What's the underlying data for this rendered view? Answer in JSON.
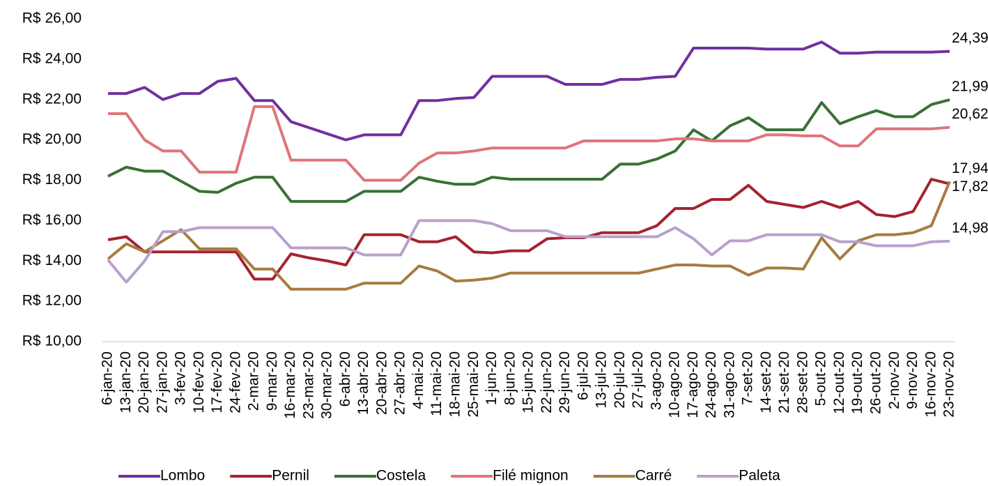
{
  "chart_data": {
    "type": "line",
    "categories": [
      "6-jan-20",
      "13-jan-20",
      "20-jan-20",
      "27-jan-20",
      "3-fev-20",
      "10-fev-20",
      "17-fev-20",
      "24-fev-20",
      "2-mar-20",
      "9-mar-20",
      "16-mar-20",
      "23-mar-20",
      "30-mar-20",
      "6-abr-20",
      "13-abr-20",
      "20-abr-20",
      "27-abr-20",
      "4-mai-20",
      "11-mai-20",
      "18-mai-20",
      "25-mai-20",
      "1-jun-20",
      "8-jun-20",
      "15-jun-20",
      "22-jun-20",
      "29-jun-20",
      "6-jul-20",
      "13-jul-20",
      "20-jul-20",
      "27-jul-20",
      "3-ago-20",
      "10-ago-20",
      "17-ago-20",
      "24-ago-20",
      "31-ago-20",
      "7-set-20",
      "14-set-20",
      "21-set-20",
      "28-set-20",
      "5-out-20",
      "12-out-20",
      "19-out-20",
      "26-out-20",
      "2-nov-20",
      "9-nov-20",
      "16-nov-20",
      "23-nov-20"
    ],
    "ylim": [
      10,
      26
    ],
    "yticks": [
      {
        "value": 10,
        "label": "R$ 10,00"
      },
      {
        "value": 12,
        "label": "R$ 12,00"
      },
      {
        "value": 14,
        "label": "R$ 14,00"
      },
      {
        "value": 16,
        "label": "R$ 16,00"
      },
      {
        "value": 18,
        "label": "R$ 18,00"
      },
      {
        "value": 20,
        "label": "R$ 20,00"
      },
      {
        "value": 22,
        "label": "R$ 22,00"
      },
      {
        "value": 24,
        "label": "R$ 24,00"
      },
      {
        "value": 26,
        "label": "R$ 26,00"
      }
    ],
    "grid": false,
    "legend": "bottom",
    "series": [
      {
        "name": "Lombo",
        "color": "#7030a0",
        "values": [
          22.3,
          22.3,
          22.6,
          22.0,
          22.3,
          22.3,
          22.9,
          23.05,
          21.95,
          21.95,
          20.9,
          20.6,
          20.3,
          20.0,
          20.25,
          20.25,
          20.25,
          21.95,
          21.95,
          22.05,
          22.1,
          23.15,
          23.15,
          23.15,
          23.15,
          22.75,
          22.75,
          22.75,
          23.0,
          23.0,
          23.1,
          23.15,
          24.55,
          24.55,
          24.55,
          24.55,
          24.5,
          24.5,
          24.5,
          24.85,
          24.3,
          24.3,
          24.35,
          24.35,
          24.35,
          24.35,
          24.39
        ],
        "value_labels": [
          null,
          null,
          null,
          null,
          null,
          null,
          null,
          null,
          null,
          null,
          null,
          null,
          null,
          null,
          null,
          null,
          null,
          null,
          null,
          null,
          null,
          null,
          null,
          null,
          null,
          null,
          null,
          null,
          null,
          null,
          null,
          null,
          null,
          null,
          null,
          null,
          null,
          null,
          null,
          null,
          null,
          null,
          null,
          null,
          null,
          null,
          "24,39"
        ]
      },
      {
        "name": "Pernil",
        "color": "#a5232f",
        "values": [
          15.05,
          15.2,
          14.45,
          14.45,
          14.45,
          14.45,
          14.45,
          14.45,
          13.1,
          13.1,
          14.35,
          14.15,
          14.0,
          13.8,
          15.3,
          15.3,
          15.3,
          14.95,
          14.95,
          15.2,
          14.45,
          14.4,
          14.5,
          14.5,
          15.1,
          15.15,
          15.15,
          15.4,
          15.4,
          15.4,
          15.75,
          16.6,
          16.6,
          17.05,
          17.05,
          17.75,
          16.95,
          16.8,
          16.65,
          16.95,
          16.65,
          16.95,
          16.3,
          16.2,
          16.45,
          18.05,
          17.82
        ],
        "value_labels": [
          null,
          null,
          null,
          null,
          null,
          null,
          null,
          null,
          null,
          null,
          null,
          null,
          null,
          null,
          null,
          null,
          null,
          null,
          null,
          null,
          null,
          null,
          null,
          null,
          null,
          null,
          null,
          null,
          null,
          null,
          null,
          null,
          null,
          null,
          null,
          null,
          null,
          null,
          null,
          null,
          null,
          null,
          null,
          null,
          null,
          null,
          "17,82"
        ]
      },
      {
        "name": "Costela",
        "color": "#3a7035",
        "values": [
          18.2,
          18.65,
          18.45,
          18.45,
          17.95,
          17.45,
          17.4,
          17.85,
          18.15,
          18.15,
          16.95,
          16.95,
          16.95,
          16.95,
          17.45,
          17.45,
          17.45,
          18.15,
          17.95,
          17.8,
          17.8,
          18.15,
          18.05,
          18.05,
          18.05,
          18.05,
          18.05,
          18.05,
          18.8,
          18.8,
          19.05,
          19.45,
          20.5,
          19.95,
          20.7,
          21.1,
          20.5,
          20.5,
          20.5,
          21.85,
          20.8,
          21.15,
          21.45,
          21.15,
          21.15,
          21.75,
          21.99
        ],
        "value_labels": [
          null,
          null,
          null,
          null,
          null,
          null,
          null,
          null,
          null,
          null,
          null,
          null,
          null,
          null,
          null,
          null,
          null,
          null,
          null,
          null,
          null,
          null,
          null,
          null,
          null,
          null,
          null,
          null,
          null,
          null,
          null,
          null,
          null,
          null,
          null,
          null,
          null,
          null,
          null,
          null,
          null,
          null,
          null,
          null,
          null,
          null,
          "21,99"
        ]
      },
      {
        "name": "Filé mignon",
        "color": "#e07479",
        "values": [
          21.3,
          21.3,
          20.0,
          19.45,
          19.45,
          18.4,
          18.4,
          18.4,
          21.65,
          21.65,
          19.0,
          19.0,
          19.0,
          19.0,
          18.0,
          18.0,
          18.0,
          18.85,
          19.35,
          19.35,
          19.45,
          19.6,
          19.6,
          19.6,
          19.6,
          19.6,
          19.95,
          19.95,
          19.95,
          19.95,
          19.95,
          20.05,
          20.05,
          19.95,
          19.95,
          19.95,
          20.25,
          20.25,
          20.2,
          20.2,
          19.7,
          19.7,
          20.55,
          20.55,
          20.55,
          20.55,
          20.62
        ],
        "value_labels": [
          null,
          null,
          null,
          null,
          null,
          null,
          null,
          null,
          null,
          null,
          null,
          null,
          null,
          null,
          null,
          null,
          null,
          null,
          null,
          null,
          null,
          null,
          null,
          null,
          null,
          null,
          null,
          null,
          null,
          null,
          null,
          null,
          null,
          null,
          null,
          null,
          null,
          null,
          null,
          null,
          null,
          null,
          null,
          null,
          null,
          null,
          "20,62"
        ]
      },
      {
        "name": "Carré",
        "color": "#a67c3e",
        "values": [
          14.1,
          14.85,
          14.45,
          15.0,
          15.55,
          14.6,
          14.6,
          14.6,
          13.6,
          13.6,
          12.6,
          12.6,
          12.6,
          12.6,
          12.9,
          12.9,
          12.9,
          13.75,
          13.5,
          13.0,
          13.05,
          13.15,
          13.4,
          13.4,
          13.4,
          13.4,
          13.4,
          13.4,
          13.4,
          13.4,
          13.6,
          13.8,
          13.8,
          13.75,
          13.75,
          13.3,
          13.65,
          13.65,
          13.6,
          15.15,
          14.1,
          15.0,
          15.3,
          15.3,
          15.4,
          15.75,
          17.94
        ],
        "value_labels": [
          null,
          null,
          null,
          null,
          null,
          null,
          null,
          null,
          null,
          null,
          null,
          null,
          null,
          null,
          null,
          null,
          null,
          null,
          null,
          null,
          null,
          null,
          null,
          null,
          null,
          null,
          null,
          null,
          null,
          null,
          null,
          null,
          null,
          null,
          null,
          null,
          null,
          null,
          null,
          null,
          null,
          null,
          null,
          null,
          null,
          null,
          "17,94"
        ]
      },
      {
        "name": "Paleta",
        "color": "#b8a0cc",
        "values": [
          14.05,
          12.95,
          14.0,
          15.45,
          15.45,
          15.65,
          15.65,
          15.65,
          15.65,
          15.65,
          14.65,
          14.65,
          14.65,
          14.65,
          14.3,
          14.3,
          14.3,
          16.0,
          16.0,
          16.0,
          16.0,
          15.85,
          15.5,
          15.5,
          15.5,
          15.2,
          15.2,
          15.2,
          15.2,
          15.2,
          15.2,
          15.65,
          15.1,
          14.3,
          15.0,
          15.0,
          15.3,
          15.3,
          15.3,
          15.3,
          14.95,
          14.95,
          14.75,
          14.75,
          14.75,
          14.95,
          14.98
        ],
        "value_labels": [
          null,
          null,
          null,
          null,
          null,
          null,
          null,
          null,
          null,
          null,
          null,
          null,
          null,
          null,
          null,
          null,
          null,
          null,
          null,
          null,
          null,
          null,
          null,
          null,
          null,
          null,
          null,
          null,
          null,
          null,
          null,
          null,
          null,
          null,
          null,
          null,
          null,
          null,
          null,
          null,
          null,
          null,
          null,
          null,
          null,
          null,
          "14,98"
        ]
      }
    ]
  }
}
